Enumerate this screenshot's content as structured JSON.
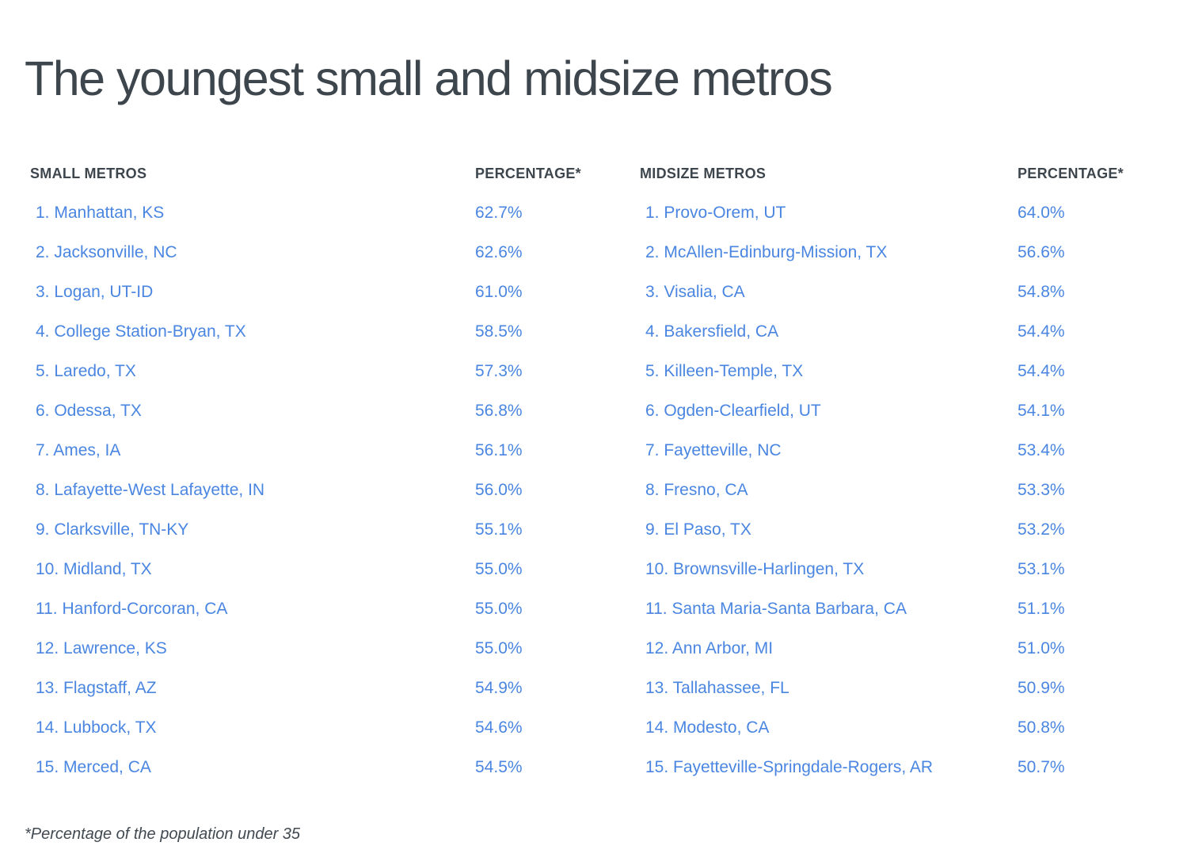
{
  "title": "The youngest small and midsize metros",
  "footnote": "*Percentage of the population under 35",
  "colors": {
    "background": "#ffffff",
    "heading_text": "#3d454d",
    "accent_blue": "#4a86e1"
  },
  "chart_data": [
    {
      "type": "table",
      "name": "small_metros",
      "columns": [
        "SMALL METROS",
        "PERCENTAGE*"
      ],
      "value_unit": "% of population under 35",
      "rows": [
        {
          "rank": 1,
          "metro": "Manhattan, KS",
          "percent": "62.7%",
          "value": 62.7
        },
        {
          "rank": 2,
          "metro": "Jacksonville, NC",
          "percent": "62.6%",
          "value": 62.6
        },
        {
          "rank": 3,
          "metro": "Logan, UT-ID",
          "percent": "61.0%",
          "value": 61.0
        },
        {
          "rank": 4,
          "metro": "College Station-Bryan, TX",
          "percent": "58.5%",
          "value": 58.5
        },
        {
          "rank": 5,
          "metro": "Laredo, TX",
          "percent": "57.3%",
          "value": 57.3
        },
        {
          "rank": 6,
          "metro": "Odessa, TX",
          "percent": "56.8%",
          "value": 56.8
        },
        {
          "rank": 7,
          "metro": "Ames, IA",
          "percent": "56.1%",
          "value": 56.1
        },
        {
          "rank": 8,
          "metro": "Lafayette-West Lafayette, IN",
          "percent": "56.0%",
          "value": 56.0
        },
        {
          "rank": 9,
          "metro": "Clarksville, TN-KY",
          "percent": "55.1%",
          "value": 55.1
        },
        {
          "rank": 10,
          "metro": "Midland, TX",
          "percent": "55.0%",
          "value": 55.0
        },
        {
          "rank": 11,
          "metro": "Hanford-Corcoran, CA",
          "percent": "55.0%",
          "value": 55.0
        },
        {
          "rank": 12,
          "metro": "Lawrence, KS",
          "percent": "55.0%",
          "value": 55.0
        },
        {
          "rank": 13,
          "metro": "Flagstaff, AZ",
          "percent": "54.9%",
          "value": 54.9
        },
        {
          "rank": 14,
          "metro": "Lubbock, TX",
          "percent": "54.6%",
          "value": 54.6
        },
        {
          "rank": 15,
          "metro": "Merced, CA",
          "percent": "54.5%",
          "value": 54.5
        }
      ]
    },
    {
      "type": "table",
      "name": "midsize_metros",
      "columns": [
        "MIDSIZE METROS",
        "PERCENTAGE*"
      ],
      "value_unit": "% of population under 35",
      "rows": [
        {
          "rank": 1,
          "metro": "Provo-Orem, UT",
          "percent": "64.0%",
          "value": 64.0
        },
        {
          "rank": 2,
          "metro": "McAllen-Edinburg-Mission, TX",
          "percent": "56.6%",
          "value": 56.6
        },
        {
          "rank": 3,
          "metro": "Visalia, CA",
          "percent": "54.8%",
          "value": 54.8
        },
        {
          "rank": 4,
          "metro": "Bakersfield, CA",
          "percent": "54.4%",
          "value": 54.4
        },
        {
          "rank": 5,
          "metro": "Killeen-Temple, TX",
          "percent": "54.4%",
          "value": 54.4
        },
        {
          "rank": 6,
          "metro": "Ogden-Clearfield, UT",
          "percent": "54.1%",
          "value": 54.1
        },
        {
          "rank": 7,
          "metro": "Fayetteville, NC",
          "percent": "53.4%",
          "value": 53.4
        },
        {
          "rank": 8,
          "metro": "Fresno, CA",
          "percent": "53.3%",
          "value": 53.3
        },
        {
          "rank": 9,
          "metro": "El Paso, TX",
          "percent": "53.2%",
          "value": 53.2
        },
        {
          "rank": 10,
          "metro": "Brownsville-Harlingen, TX",
          "percent": "53.1%",
          "value": 53.1
        },
        {
          "rank": 11,
          "metro": "Santa Maria-Santa Barbara, CA",
          "percent": "51.1%",
          "value": 51.1
        },
        {
          "rank": 12,
          "metro": "Ann Arbor, MI",
          "percent": "51.0%",
          "value": 51.0
        },
        {
          "rank": 13,
          "metro": "Tallahassee, FL",
          "percent": "50.9%",
          "value": 50.9
        },
        {
          "rank": 14,
          "metro": "Modesto, CA",
          "percent": "50.8%",
          "value": 50.8
        },
        {
          "rank": 15,
          "metro": "Fayetteville-Springdale-Rogers, AR",
          "percent": "50.7%",
          "value": 50.7
        }
      ]
    }
  ]
}
